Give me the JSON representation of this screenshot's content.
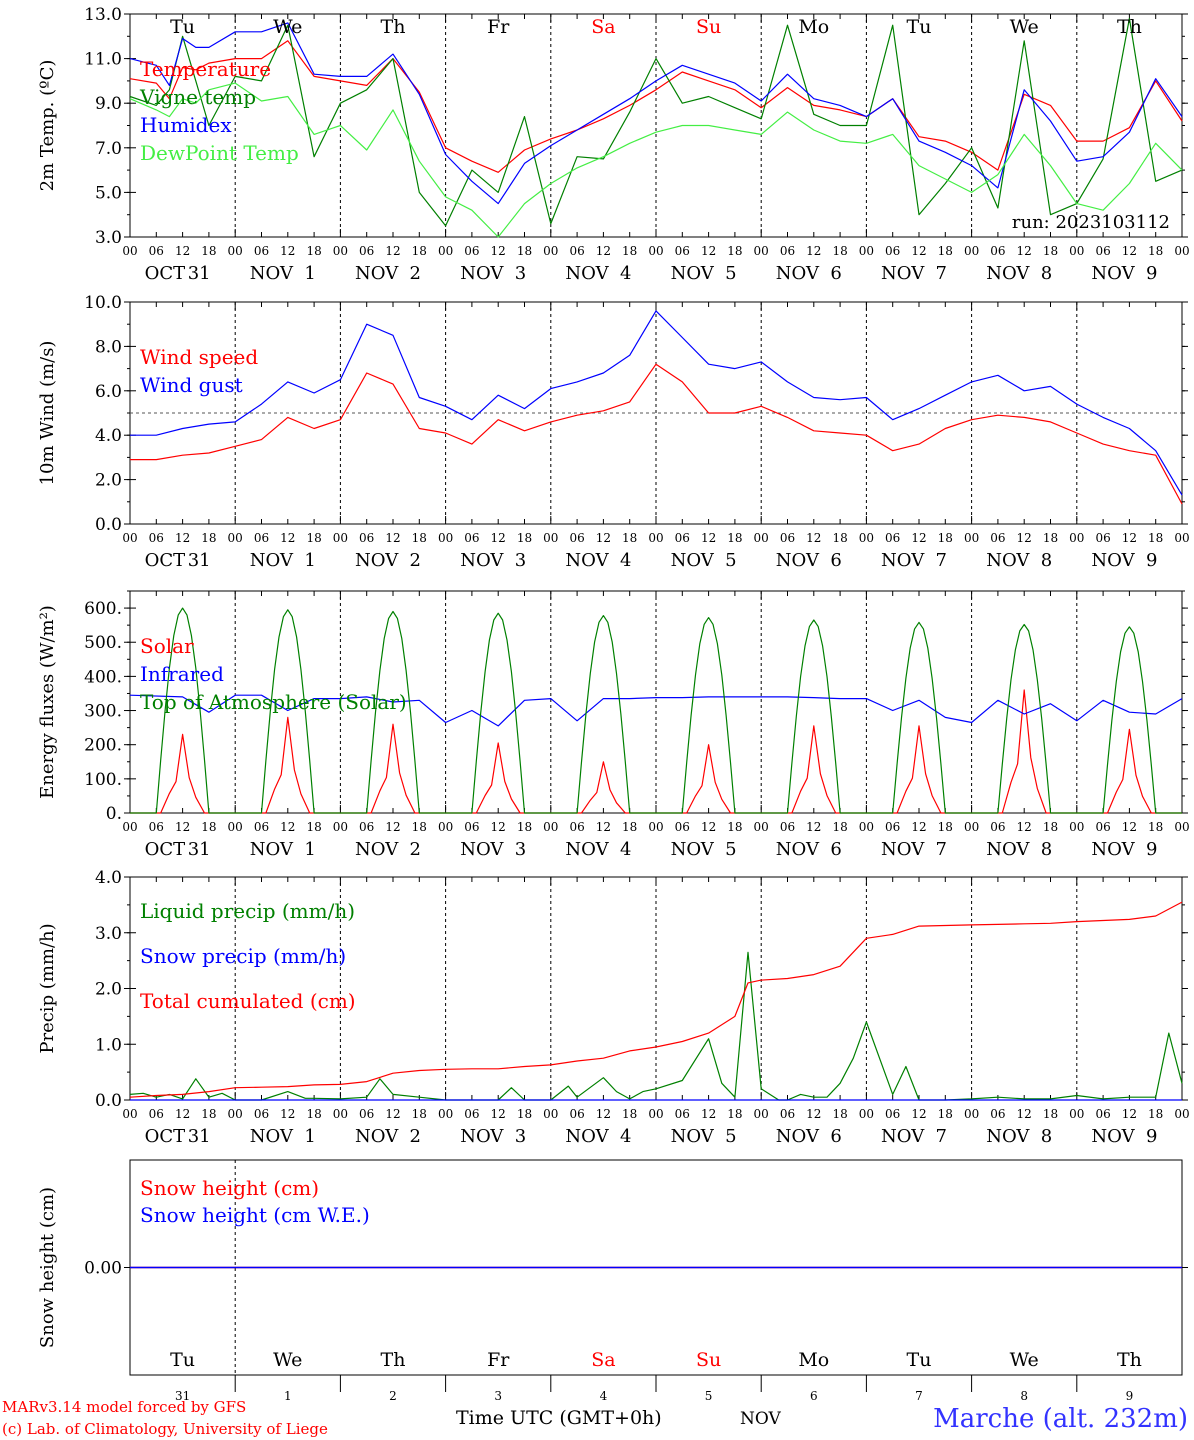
{
  "days": {
    "weekdays": [
      "Tu",
      "We",
      "Th",
      "Fr",
      "Sa",
      "Su",
      "Mo",
      "Tu",
      "We",
      "Th"
    ],
    "weekday_colors": [
      "#000000",
      "#000000",
      "#000000",
      "#000000",
      "#ff0000",
      "#ff0000",
      "#000000",
      "#000000",
      "#000000",
      "#000000"
    ],
    "month_labels": [
      "OCT",
      "NOV",
      "NOV",
      "NOV",
      "NOV",
      "NOV",
      "NOV",
      "NOV",
      "NOV",
      "NOV"
    ],
    "day_numbers": [
      "31",
      "1",
      "2",
      "3",
      "4",
      "5",
      "6",
      "7",
      "8",
      "9"
    ],
    "hour_ticks": [
      "00",
      "06",
      "12",
      "18"
    ],
    "last_tick": "00"
  },
  "footer": {
    "model_line": "MARv3.14 model forced by GFS",
    "credit_line": "(c) Lab. of Climatology, University of Liege",
    "time_label": "Time UTC (GMT+0h)",
    "month": "NOV",
    "location": "Marche (alt. 232m)"
  },
  "chart_data": [
    {
      "type": "line",
      "ylabel": "2m Temp. (ºC)",
      "ylim": [
        3,
        13
      ],
      "yticks": [
        "3.0",
        "5.0",
        "7.0",
        "9.0",
        "11.0",
        "13.0"
      ],
      "ytick_values": [
        3,
        5,
        7,
        9,
        11,
        13
      ],
      "annotation": "run: 2023103112",
      "x_unit": "hours since Oct 31 00 UTC",
      "xlim": [
        0,
        240
      ],
      "series": [
        {
          "name": "Temperature",
          "color": "#ff0000",
          "x": [
            0,
            6,
            9,
            12,
            15,
            18,
            24,
            30,
            36,
            42,
            48,
            54,
            60,
            66,
            72,
            78,
            84,
            90,
            96,
            102,
            108,
            114,
            120,
            126,
            132,
            138,
            144,
            150,
            156,
            162,
            168,
            174,
            180,
            186,
            192,
            198,
            204,
            210,
            216,
            222,
            228,
            234,
            240
          ],
          "values": [
            10.1,
            9.9,
            9.2,
            10.6,
            10.5,
            10.8,
            11.0,
            11.0,
            11.8,
            10.2,
            10.0,
            9.8,
            11.0,
            9.5,
            7.0,
            6.4,
            5.9,
            6.9,
            7.4,
            7.8,
            8.3,
            8.9,
            9.6,
            10.4,
            10.0,
            9.6,
            8.8,
            9.7,
            8.9,
            8.7,
            8.4,
            9.2,
            7.5,
            7.3,
            6.8,
            6.0,
            9.4,
            8.9,
            7.3,
            7.3,
            7.9,
            10.0,
            8.2
          ]
        },
        {
          "name": "Vigne temp",
          "color": "#008000",
          "x": [
            0,
            6,
            9,
            12,
            15,
            18,
            24,
            30,
            36,
            42,
            48,
            54,
            60,
            66,
            72,
            78,
            84,
            90,
            96,
            102,
            108,
            114,
            120,
            126,
            132,
            138,
            144,
            150,
            156,
            162,
            168,
            174,
            180,
            186,
            192,
            198,
            204,
            210,
            216,
            222,
            228,
            234,
            240
          ],
          "values": [
            9.3,
            8.9,
            9.6,
            12.0,
            10.0,
            8.0,
            10.2,
            10.0,
            12.5,
            6.6,
            9.0,
            9.6,
            11.0,
            5.0,
            3.5,
            6.0,
            5.0,
            8.4,
            3.6,
            6.6,
            6.5,
            8.6,
            11.0,
            9.0,
            9.3,
            8.8,
            8.3,
            12.5,
            8.5,
            8.0,
            8.0,
            12.5,
            4.0,
            5.4,
            7.0,
            4.3,
            11.8,
            4.0,
            4.5,
            6.5,
            12.8,
            5.5,
            6.0
          ]
        },
        {
          "name": "Humidex",
          "color": "#0000ff",
          "x": [
            0,
            6,
            9,
            12,
            15,
            18,
            24,
            30,
            36,
            42,
            48,
            54,
            60,
            66,
            72,
            78,
            84,
            90,
            96,
            102,
            108,
            114,
            120,
            126,
            132,
            138,
            144,
            150,
            156,
            162,
            168,
            174,
            180,
            186,
            192,
            198,
            204,
            210,
            216,
            222,
            228,
            234,
            240
          ],
          "values": [
            11.0,
            10.7,
            9.8,
            11.9,
            11.5,
            11.5,
            12.2,
            12.2,
            12.6,
            10.3,
            10.2,
            10.2,
            11.2,
            9.4,
            6.7,
            5.5,
            4.5,
            6.3,
            7.1,
            7.8,
            8.5,
            9.2,
            10.0,
            10.7,
            10.3,
            9.9,
            9.1,
            10.3,
            9.2,
            8.9,
            8.4,
            9.2,
            7.3,
            6.8,
            6.2,
            5.2,
            9.6,
            8.2,
            6.4,
            6.6,
            7.7,
            10.1,
            8.4
          ]
        },
        {
          "name": "DewPoint Temp",
          "color": "#44ee44",
          "x": [
            0,
            6,
            9,
            12,
            15,
            18,
            24,
            30,
            36,
            42,
            48,
            54,
            60,
            66,
            72,
            78,
            84,
            90,
            96,
            102,
            108,
            114,
            120,
            126,
            132,
            138,
            144,
            150,
            156,
            162,
            168,
            174,
            180,
            186,
            192,
            198,
            204,
            210,
            216,
            222,
            228,
            234,
            240
          ],
          "values": [
            9.2,
            8.7,
            8.4,
            9.2,
            9.0,
            9.6,
            9.9,
            9.1,
            9.3,
            7.6,
            8.0,
            6.9,
            8.7,
            6.4,
            4.8,
            4.2,
            3.0,
            4.5,
            5.4,
            6.1,
            6.6,
            7.2,
            7.7,
            8.0,
            8.0,
            7.8,
            7.6,
            8.6,
            7.8,
            7.3,
            7.2,
            7.6,
            6.2,
            5.6,
            5.0,
            5.8,
            7.6,
            6.2,
            4.5,
            4.2,
            5.4,
            7.2,
            6.0
          ]
        }
      ]
    },
    {
      "type": "line",
      "ylabel": "10m Wind (m/s)",
      "ylim": [
        0,
        10
      ],
      "yticks": [
        "0.0",
        "2.0",
        "4.0",
        "6.0",
        "8.0",
        "10.0"
      ],
      "ytick_values": [
        0,
        2,
        4,
        6,
        8,
        10
      ],
      "reference_line": 5,
      "x_unit": "hours since Oct 31 00 UTC",
      "xlim": [
        0,
        240
      ],
      "series": [
        {
          "name": "Wind speed",
          "color": "#ff0000",
          "x": [
            0,
            6,
            12,
            18,
            24,
            30,
            36,
            42,
            48,
            54,
            60,
            66,
            72,
            78,
            84,
            90,
            96,
            102,
            108,
            114,
            120,
            126,
            132,
            138,
            144,
            150,
            156,
            162,
            168,
            174,
            180,
            186,
            192,
            198,
            204,
            210,
            216,
            222,
            228,
            234,
            240
          ],
          "values": [
            2.9,
            2.9,
            3.1,
            3.2,
            3.5,
            3.8,
            4.8,
            4.3,
            4.7,
            6.8,
            6.3,
            4.3,
            4.1,
            3.6,
            4.7,
            4.2,
            4.6,
            4.9,
            5.1,
            5.5,
            7.2,
            6.4,
            5.0,
            5.0,
            5.3,
            4.8,
            4.2,
            4.1,
            4.0,
            3.3,
            3.6,
            4.3,
            4.7,
            4.9,
            4.8,
            4.6,
            4.1,
            3.6,
            3.3,
            3.1,
            0.9
          ]
        },
        {
          "name": "Wind gust",
          "color": "#0000ff",
          "x": [
            0,
            6,
            12,
            18,
            24,
            30,
            36,
            42,
            48,
            54,
            60,
            66,
            72,
            78,
            84,
            90,
            96,
            102,
            108,
            114,
            120,
            126,
            132,
            138,
            144,
            150,
            156,
            162,
            168,
            174,
            180,
            186,
            192,
            198,
            204,
            210,
            216,
            222,
            228,
            234,
            240
          ],
          "values": [
            4.0,
            4.0,
            4.3,
            4.5,
            4.6,
            5.4,
            6.4,
            5.9,
            6.5,
            9.0,
            8.5,
            5.7,
            5.3,
            4.7,
            5.8,
            5.2,
            6.1,
            6.4,
            6.8,
            7.6,
            9.6,
            8.4,
            7.2,
            7.0,
            7.3,
            6.4,
            5.7,
            5.6,
            5.7,
            4.7,
            5.2,
            5.8,
            6.4,
            6.7,
            6.0,
            6.2,
            5.4,
            4.8,
            4.3,
            3.3,
            1.3
          ]
        }
      ]
    },
    {
      "type": "line",
      "ylabel": "Energy fluxes (W/m²)",
      "ylim": [
        0,
        650
      ],
      "yticks": [
        "0.",
        "100.",
        "200.",
        "300.",
        "400.",
        "500.",
        "600."
      ],
      "ytick_values": [
        0,
        100,
        200,
        300,
        400,
        500,
        600
      ],
      "x_unit": "hours since Oct 31 00 UTC",
      "xlim": [
        0,
        240
      ],
      "series": [
        {
          "name": "Solar",
          "color": "#ff0000",
          "daily_peaks": [
            230,
            280,
            260,
            205,
            150,
            200,
            255,
            255,
            360,
            245
          ]
        },
        {
          "name": "Infrared",
          "color": "#0000ff",
          "x": [
            0,
            12,
            18,
            24,
            30,
            36,
            42,
            48,
            54,
            60,
            66,
            72,
            78,
            84,
            90,
            96,
            102,
            108,
            114,
            120,
            126,
            132,
            138,
            144,
            150,
            156,
            162,
            168,
            174,
            180,
            186,
            192,
            198,
            204,
            210,
            216,
            222,
            228,
            234,
            240
          ],
          "values": [
            345,
            340,
            295,
            345,
            345,
            300,
            335,
            335,
            340,
            325,
            330,
            265,
            300,
            255,
            330,
            335,
            270,
            335,
            335,
            338,
            338,
            340,
            340,
            340,
            340,
            338,
            335,
            335,
            300,
            330,
            280,
            265,
            330,
            290,
            320,
            270,
            330,
            295,
            290,
            335
          ]
        },
        {
          "name": "Top of Atmosphere (Solar)",
          "color": "#008000",
          "daily_peaks": [
            600,
            595,
            590,
            585,
            578,
            572,
            565,
            558,
            552,
            545
          ]
        }
      ]
    },
    {
      "type": "line",
      "ylabel": "Precip (mm/h)",
      "ylim": [
        0,
        4
      ],
      "yticks": [
        "0.0",
        "1.0",
        "2.0",
        "3.0",
        "4.0"
      ],
      "ytick_values": [
        0,
        1,
        2,
        3,
        4
      ],
      "x_unit": "hours since Oct 31 00 UTC",
      "xlim": [
        0,
        240
      ],
      "series": [
        {
          "name": "Liquid precip (mm/h)",
          "color": "#008000",
          "x": [
            0,
            3,
            6,
            9,
            12,
            15,
            18,
            21,
            24,
            30,
            36,
            40,
            42,
            48,
            54,
            57,
            60,
            66,
            72,
            78,
            84,
            87,
            90,
            96,
            100,
            102,
            108,
            111,
            114,
            117,
            120,
            126,
            132,
            135,
            138,
            141,
            144,
            148,
            150,
            153,
            156,
            159,
            162,
            165,
            168,
            174,
            177,
            180,
            186,
            192,
            198,
            204,
            210,
            216,
            222,
            228,
            234,
            237,
            240
          ],
          "values": [
            0.1,
            0.12,
            0.05,
            0.1,
            0.02,
            0.38,
            0.05,
            0.12,
            0.0,
            0.0,
            0.15,
            0.03,
            0.03,
            0.02,
            0.05,
            0.38,
            0.1,
            0.05,
            0.0,
            0.0,
            0.0,
            0.22,
            0.0,
            0.0,
            0.25,
            0.05,
            0.4,
            0.15,
            0.02,
            0.15,
            0.2,
            0.35,
            1.1,
            0.3,
            0.05,
            2.65,
            0.2,
            0.0,
            0.0,
            0.1,
            0.05,
            0.05,
            0.3,
            0.75,
            1.4,
            0.1,
            0.6,
            0.0,
            0.0,
            0.02,
            0.05,
            0.02,
            0.02,
            0.08,
            0.02,
            0.05,
            0.05,
            1.2,
            0.3
          ]
        },
        {
          "name": "Snow precip (mm/h)",
          "color": "#0000ff",
          "x": [
            0,
            240
          ],
          "values": [
            0,
            0
          ]
        },
        {
          "name": "Total cumulated (cm)",
          "color": "#ff0000",
          "x": [
            0,
            6,
            12,
            18,
            24,
            30,
            36,
            42,
            48,
            54,
            60,
            66,
            72,
            78,
            84,
            90,
            96,
            102,
            108,
            114,
            120,
            126,
            132,
            138,
            141,
            144,
            150,
            156,
            162,
            168,
            174,
            180,
            186,
            192,
            198,
            204,
            210,
            216,
            222,
            228,
            234,
            240
          ],
          "values": [
            0.05,
            0.08,
            0.1,
            0.15,
            0.22,
            0.23,
            0.24,
            0.27,
            0.28,
            0.33,
            0.48,
            0.53,
            0.55,
            0.56,
            0.56,
            0.6,
            0.63,
            0.7,
            0.75,
            0.88,
            0.95,
            1.05,
            1.2,
            1.5,
            2.1,
            2.15,
            2.18,
            2.25,
            2.4,
            2.9,
            2.97,
            3.12,
            3.13,
            3.14,
            3.15,
            3.16,
            3.17,
            3.2,
            3.22,
            3.24,
            3.3,
            3.55
          ]
        }
      ]
    },
    {
      "type": "line",
      "ylabel": "Snow height (cm)",
      "ylim": [
        -1,
        1
      ],
      "yticks": [
        "0.00"
      ],
      "ytick_values": [
        0
      ],
      "x_unit": "hours since Oct 31 00 UTC",
      "xlim": [
        0,
        240
      ],
      "series": [
        {
          "name": "Snow height (cm)",
          "color": "#ff0000",
          "x": [
            0,
            240
          ],
          "values": [
            0,
            0
          ]
        },
        {
          "name": "Snow height (cm W.E.)",
          "color": "#0000ff",
          "x": [
            0,
            240
          ],
          "values": [
            0,
            0
          ]
        }
      ]
    }
  ]
}
